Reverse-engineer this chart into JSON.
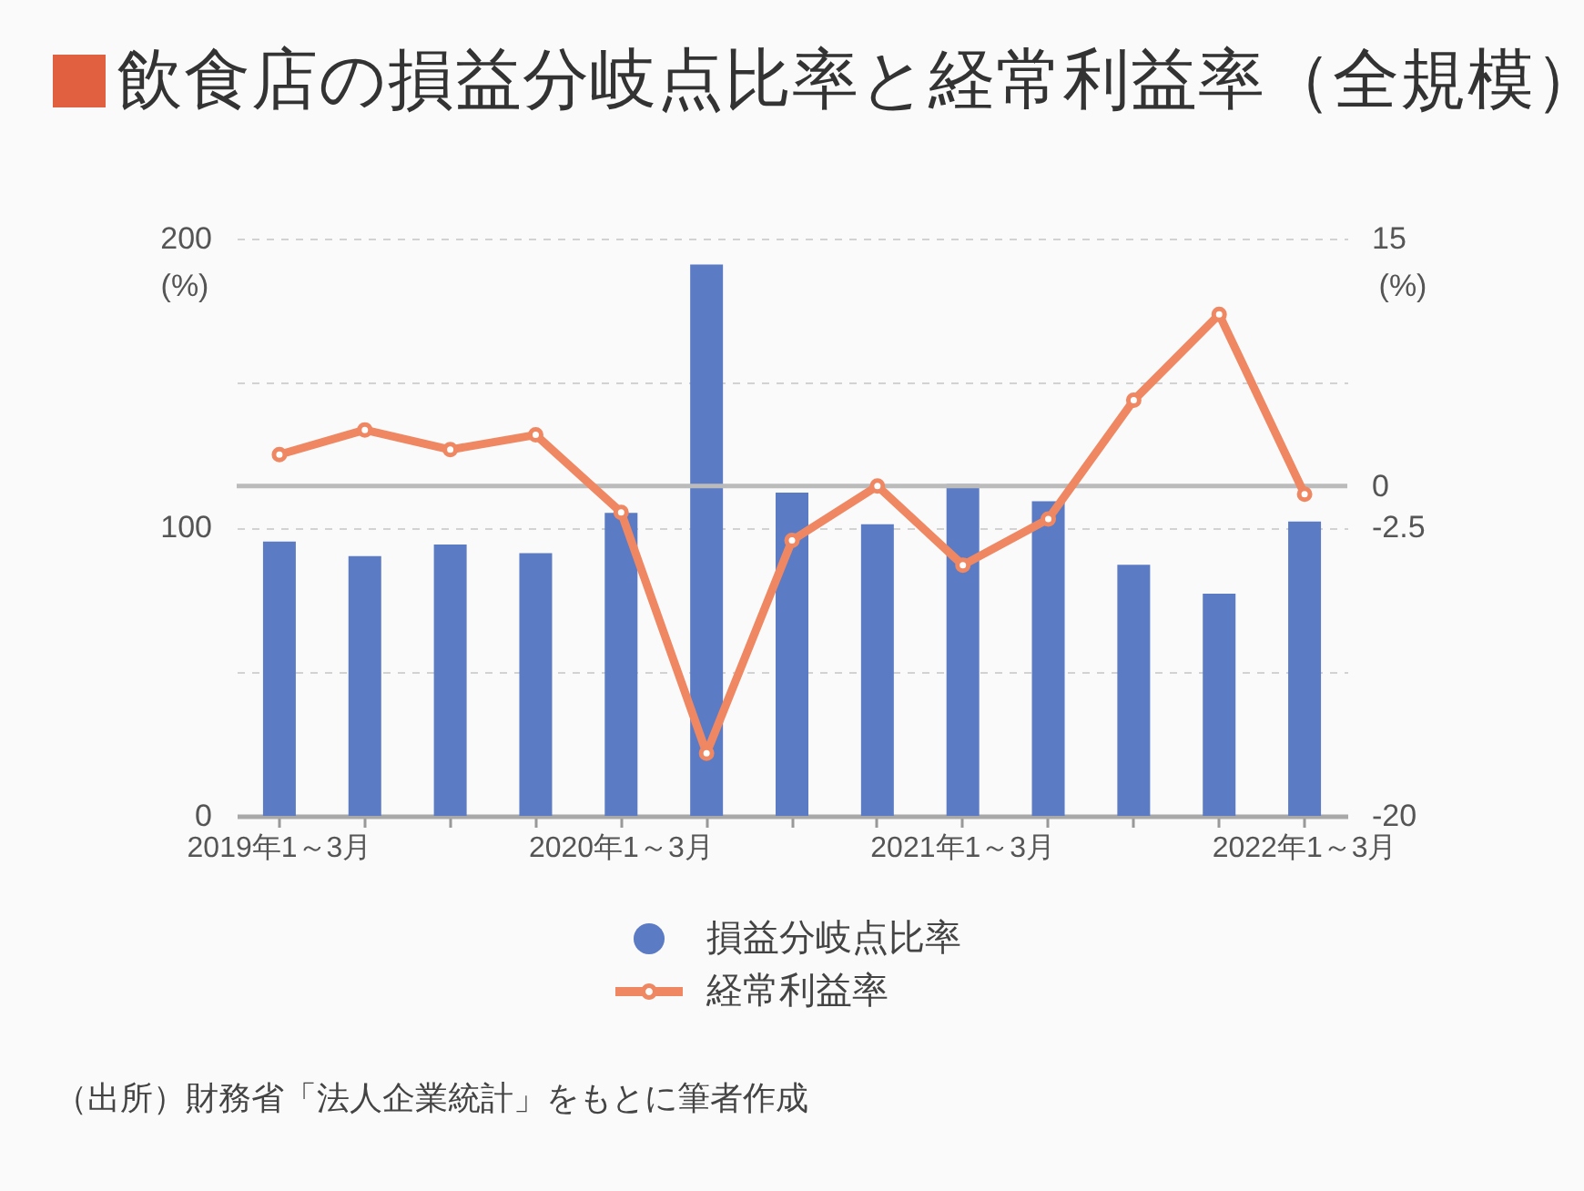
{
  "chart_data": {
    "type": "bar",
    "title": "飲食店の損益分岐点比率と経常利益率（全規模）",
    "categories": [
      "2019年1～3月",
      null,
      null,
      null,
      "2020年1～3月",
      null,
      null,
      null,
      "2021年1～3月",
      null,
      null,
      null,
      "2022年1～3月"
    ],
    "series": [
      {
        "name": "損益分岐点比率",
        "color": "#5b7bc4",
        "values": [
          95,
          90,
          94,
          91,
          105,
          191,
          112,
          101,
          115,
          109,
          87,
          77,
          102
        ]
      },
      {
        "name": "経常利益率",
        "type": "line",
        "axis": "y2",
        "color": "#ef8762",
        "values": [
          1.9,
          3.4,
          2.2,
          3.1,
          -1.6,
          -16.2,
          -3.3,
          0,
          -4.8,
          -2.0,
          5.2,
          10.4,
          -0.5
        ]
      }
    ],
    "ylabel": "(%)",
    "y2label": "(%)",
    "ylim": [
      0,
      200
    ],
    "yticks": [
      0,
      {
        "value": 50,
        "label": null
      },
      100,
      {
        "value": 150,
        "label": null
      },
      200
    ],
    "y2lim": [
      -20,
      15
    ],
    "y2ticks": [
      -20,
      -2.5,
      0,
      15
    ],
    "ref_lines": [
      {
        "axis": "y2",
        "value": 0,
        "color": "#bbbbbb"
      }
    ],
    "grid": "y",
    "legend": "bottom",
    "marker": "circle",
    "annotations": [
      "（出所）財務省「法人企業統計」をもとに筆者作成"
    ]
  }
}
